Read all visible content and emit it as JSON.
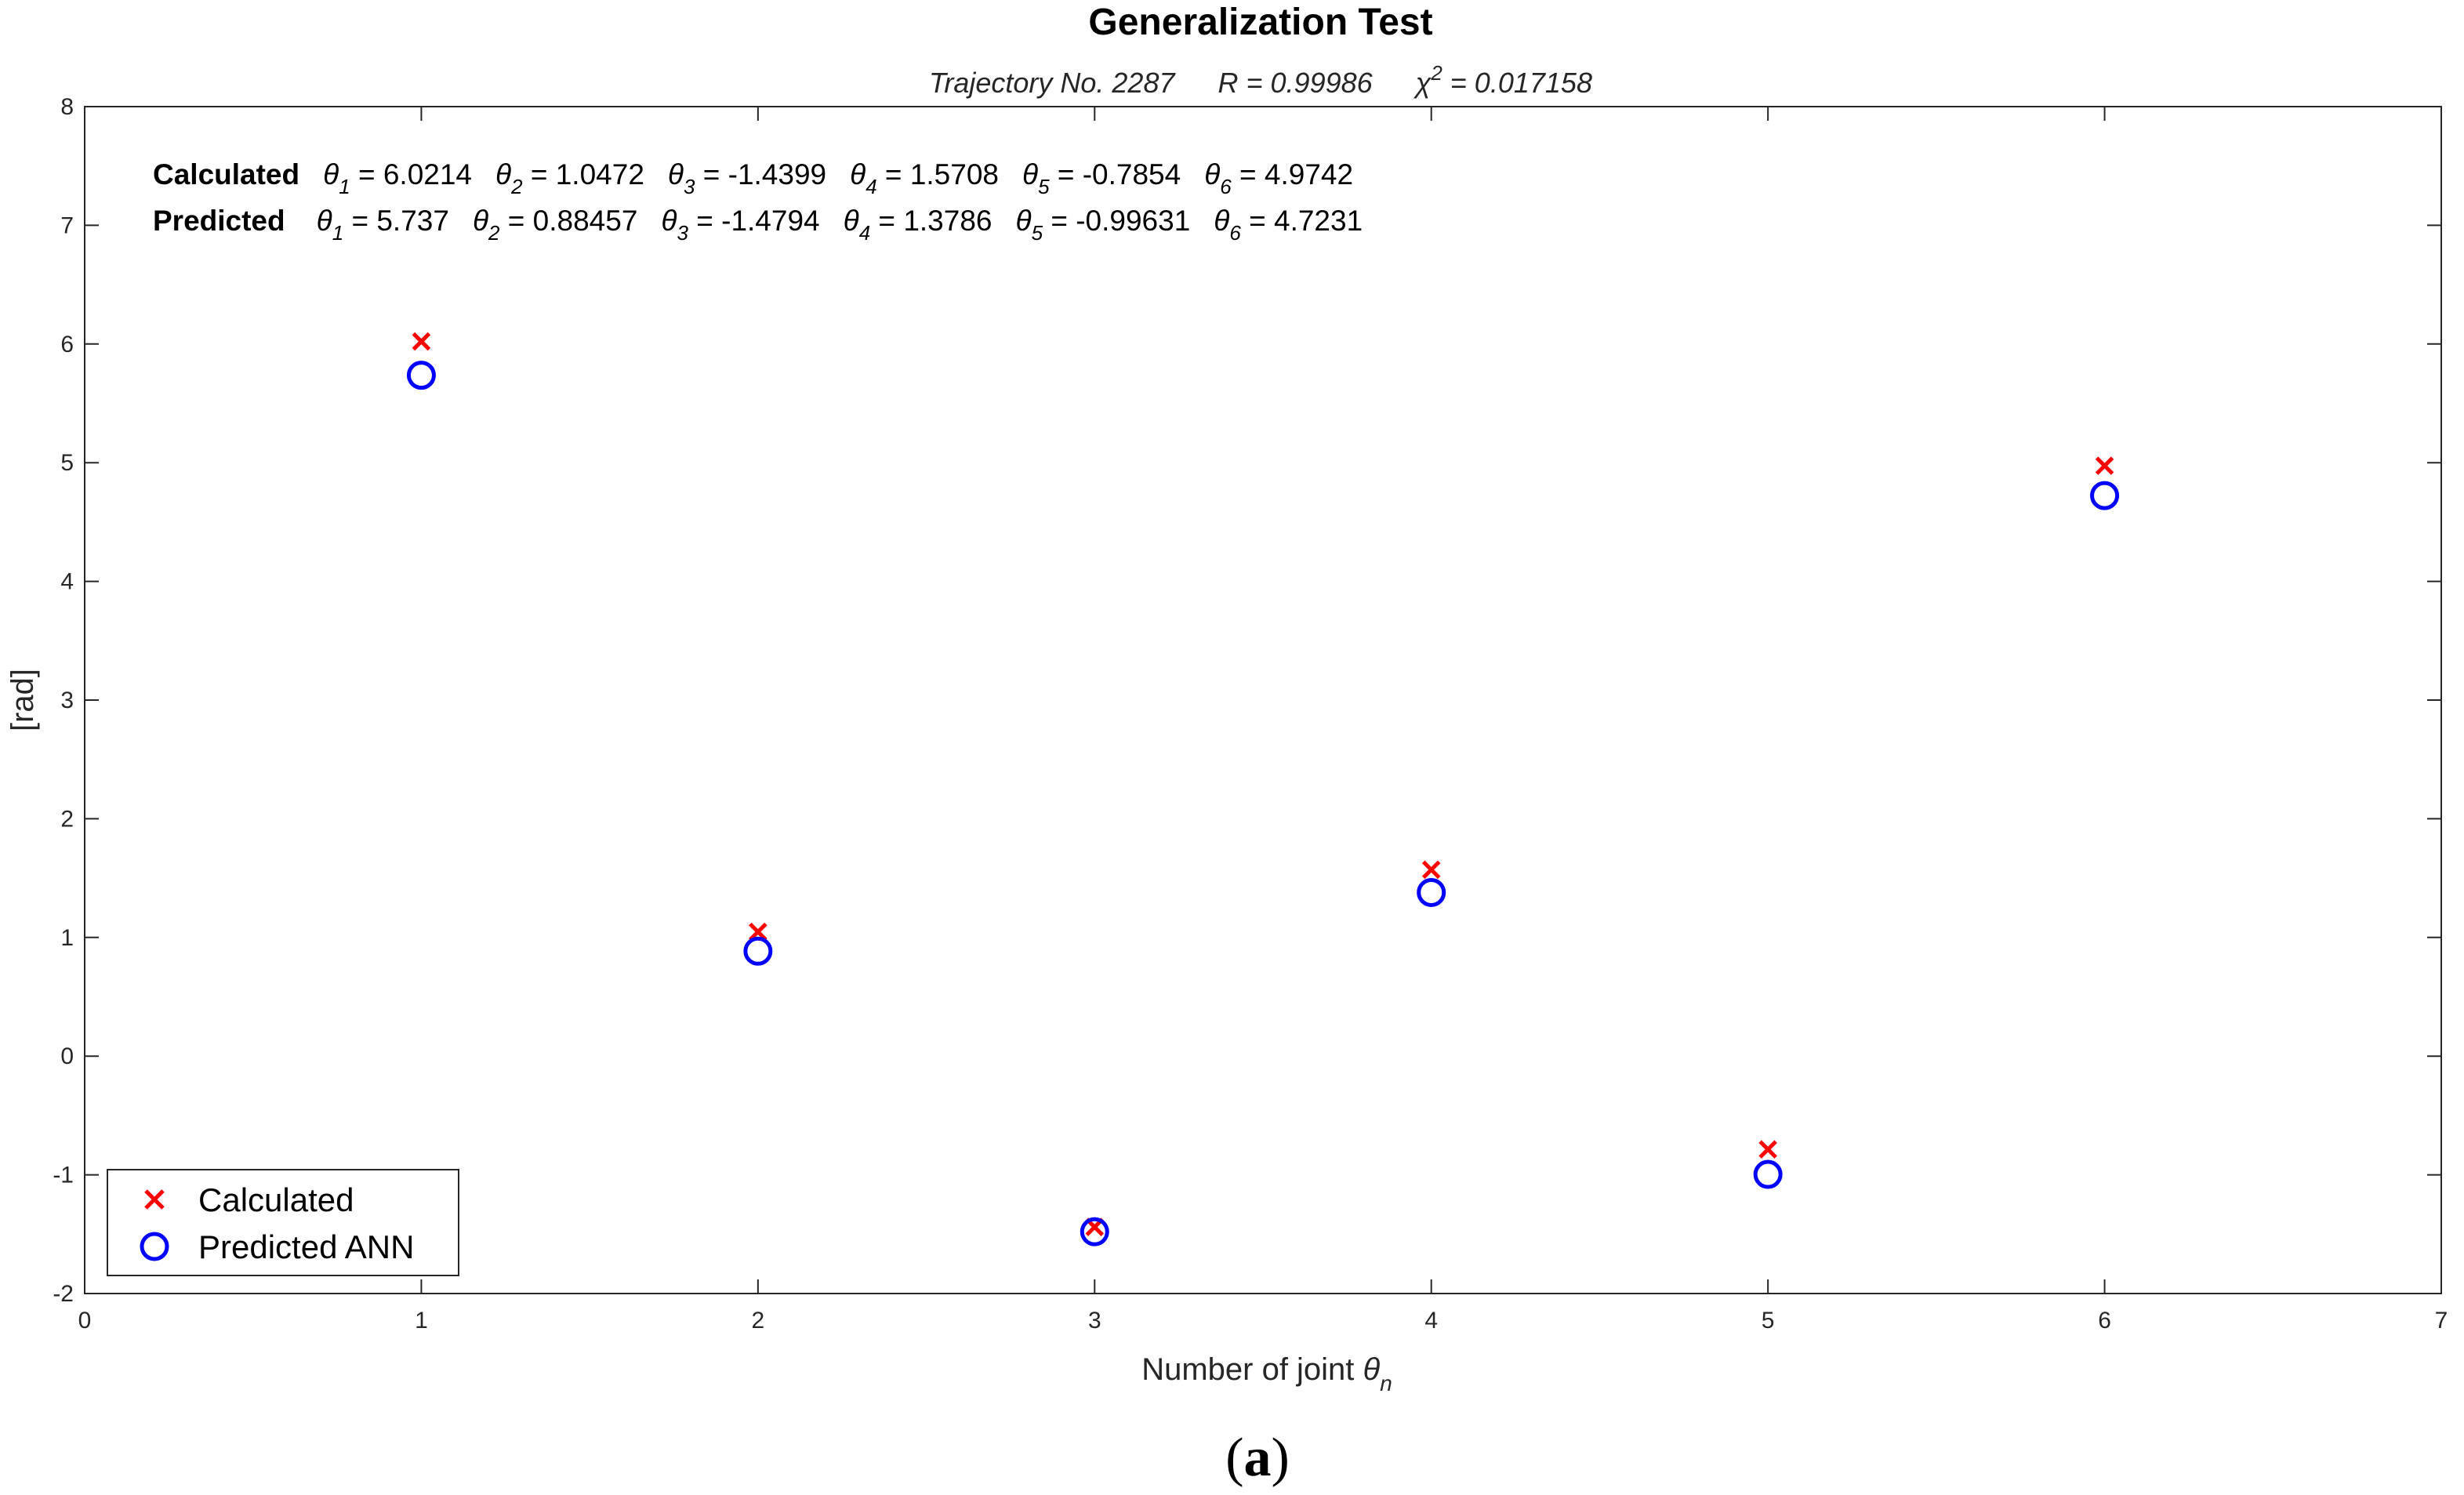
{
  "chart_data": {
    "type": "scatter",
    "title": "Generalization Test",
    "subtitle": {
      "trajectory": "Trajectory No. 2287",
      "r": "R = 0.99986",
      "chi_symbol": "χ",
      "chi_sup": "2",
      "chi_value": " = 0.017158"
    },
    "xlabel": "Number of joint ",
    "xlabel_symbol": "θ",
    "xlabel_sub": "n",
    "ylabel": "[rad]",
    "xlim": [
      0,
      7
    ],
    "ylim": [
      -2,
      8
    ],
    "xticks": [
      0,
      1,
      2,
      3,
      4,
      5,
      6,
      7
    ],
    "yticks": [
      -2,
      -1,
      0,
      1,
      2,
      3,
      4,
      5,
      6,
      7,
      8
    ],
    "x": [
      1,
      2,
      3,
      4,
      5,
      6
    ],
    "series": [
      {
        "name": "Calculated",
        "marker": "x",
        "color": "#ff0000",
        "values": [
          6.0214,
          1.0472,
          -1.4399,
          1.5708,
          -0.7854,
          4.9742
        ]
      },
      {
        "name": "Predicted ANN",
        "marker": "o",
        "color": "#0000ff",
        "values": [
          5.737,
          0.88457,
          -1.4794,
          1.3786,
          -0.99631,
          4.7231
        ]
      }
    ],
    "annotations": [
      {
        "label": "Calculated",
        "values": [
          "6.0214",
          "1.0472",
          "-1.4399",
          "1.5708",
          "-0.7854",
          "4.9742"
        ]
      },
      {
        "label": "Predicted",
        "values": [
          "5.737",
          "0.88457",
          "-1.4794",
          "1.3786",
          "-0.99631",
          "4.7231"
        ]
      }
    ],
    "theta_symbol": "θ",
    "legend_position": "bottom-left",
    "grid": false
  },
  "caption": {
    "open": "(",
    "letter": "a",
    "close": ")"
  }
}
